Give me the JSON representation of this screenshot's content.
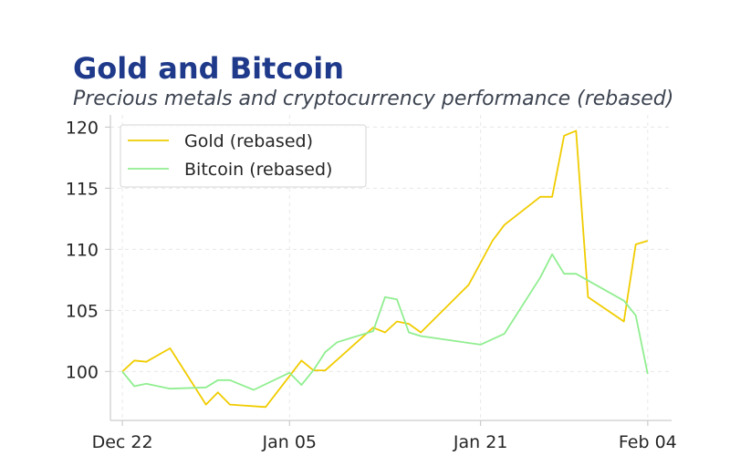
{
  "title": "Gold and Bitcoin",
  "subtitle": "Precious metals and cryptocurrency performance (rebased)",
  "colors": {
    "gold": "#f0cc00",
    "bitcoin": "#90ee90",
    "title": "#1f3a8a"
  },
  "chart_data": {
    "type": "line",
    "title": "Gold and Bitcoin",
    "subtitle": "Precious metals and cryptocurrency performance (rebased)",
    "xlabel": "",
    "ylabel": "",
    "ylim": [
      96,
      121
    ],
    "xlim": [
      "2023-12-21",
      "2024-02-06"
    ],
    "x_ticks": [
      "2023-12-22",
      "2024-01-05",
      "2024-01-21",
      "2024-02-04"
    ],
    "x_tick_labels": [
      "Dec 22",
      "Jan 05",
      "Jan 21",
      "Feb 04"
    ],
    "y_ticks": [
      100,
      105,
      110,
      115,
      120
    ],
    "grid": true,
    "legend_position": "top-left",
    "series": [
      {
        "name": "Gold (rebased)",
        "color": "#f0cc00",
        "points": [
          [
            "2023-12-22",
            100.0
          ],
          [
            "2023-12-23",
            100.9
          ],
          [
            "2023-12-24",
            100.8
          ],
          [
            "2023-12-26",
            101.9
          ],
          [
            "2023-12-29",
            97.3
          ],
          [
            "2023-12-30",
            98.3
          ],
          [
            "2023-12-31",
            97.3
          ],
          [
            "2024-01-03",
            97.1
          ],
          [
            "2024-01-06",
            100.9
          ],
          [
            "2024-01-07",
            100.1
          ],
          [
            "2024-01-08",
            100.1
          ],
          [
            "2024-01-12",
            103.6
          ],
          [
            "2024-01-13",
            103.2
          ],
          [
            "2024-01-14",
            104.1
          ],
          [
            "2024-01-15",
            103.9
          ],
          [
            "2024-01-16",
            103.2
          ],
          [
            "2024-01-20",
            107.1
          ],
          [
            "2024-01-22",
            110.7
          ],
          [
            "2024-01-23",
            112.0
          ],
          [
            "2024-01-26",
            114.3
          ],
          [
            "2024-01-27",
            114.3
          ],
          [
            "2024-01-28",
            119.3
          ],
          [
            "2024-01-29",
            119.7
          ],
          [
            "2024-01-30",
            106.1
          ],
          [
            "2024-02-02",
            104.1
          ],
          [
            "2024-02-03",
            110.4
          ],
          [
            "2024-02-04",
            110.7
          ]
        ]
      },
      {
        "name": "Bitcoin (rebased)",
        "color": "#90ee90",
        "points": [
          [
            "2023-12-22",
            100.0
          ],
          [
            "2023-12-23",
            98.8
          ],
          [
            "2023-12-24",
            99.0
          ],
          [
            "2023-12-26",
            98.6
          ],
          [
            "2023-12-29",
            98.7
          ],
          [
            "2023-12-30",
            99.3
          ],
          [
            "2023-12-31",
            99.3
          ],
          [
            "2024-01-02",
            98.5
          ],
          [
            "2024-01-05",
            99.9
          ],
          [
            "2024-01-06",
            98.9
          ],
          [
            "2024-01-07",
            100.1
          ],
          [
            "2024-01-08",
            101.6
          ],
          [
            "2024-01-09",
            102.4
          ],
          [
            "2024-01-12",
            103.3
          ],
          [
            "2024-01-13",
            106.1
          ],
          [
            "2024-01-14",
            105.9
          ],
          [
            "2024-01-15",
            103.2
          ],
          [
            "2024-01-16",
            102.9
          ],
          [
            "2024-01-21",
            102.2
          ],
          [
            "2024-01-23",
            103.1
          ],
          [
            "2024-01-26",
            107.7
          ],
          [
            "2024-01-27",
            109.6
          ],
          [
            "2024-01-28",
            108.0
          ],
          [
            "2024-01-29",
            108.0
          ],
          [
            "2024-02-02",
            105.8
          ],
          [
            "2024-02-03",
            104.6
          ],
          [
            "2024-02-04",
            99.8
          ]
        ]
      }
    ]
  }
}
